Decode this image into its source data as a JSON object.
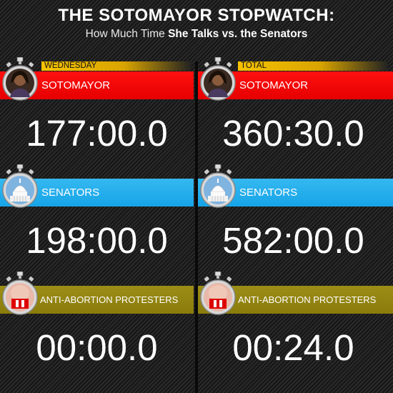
{
  "title": "THE SOTOMAYOR STOPWATCH:",
  "subtitle_pre": "How Much Time ",
  "subtitle_bold": "She Talks vs. the Senators",
  "columns": [
    {
      "header": "WEDNESDAY",
      "rows": [
        {
          "label": "SOTOMAYOR",
          "time": "177:00.0",
          "icon": "sotomayor-portrait-stopwatch-icon"
        },
        {
          "label": "SENATORS",
          "time": "198:00.0",
          "icon": "capitol-stopwatch-icon"
        },
        {
          "label": "ANTI-ABORTION PROTESTERS",
          "time": "00:00.0",
          "icon": "protester-stopwatch-icon"
        }
      ]
    },
    {
      "header": "TOTAL",
      "rows": [
        {
          "label": "SOTOMAYOR",
          "time": "360:30.0",
          "icon": "sotomayor-portrait-stopwatch-icon"
        },
        {
          "label": "SENATORS",
          "time": "582:00.0",
          "icon": "capitol-stopwatch-icon"
        },
        {
          "label": "ANTI-ABORTION PROTESTERS",
          "time": "00:24.0",
          "icon": "protester-stopwatch-icon"
        }
      ]
    }
  ],
  "colors": {
    "sotomayor": "#f20000",
    "senators": "#1eaaea",
    "protesters": "#928414",
    "header": "#f5c200"
  }
}
